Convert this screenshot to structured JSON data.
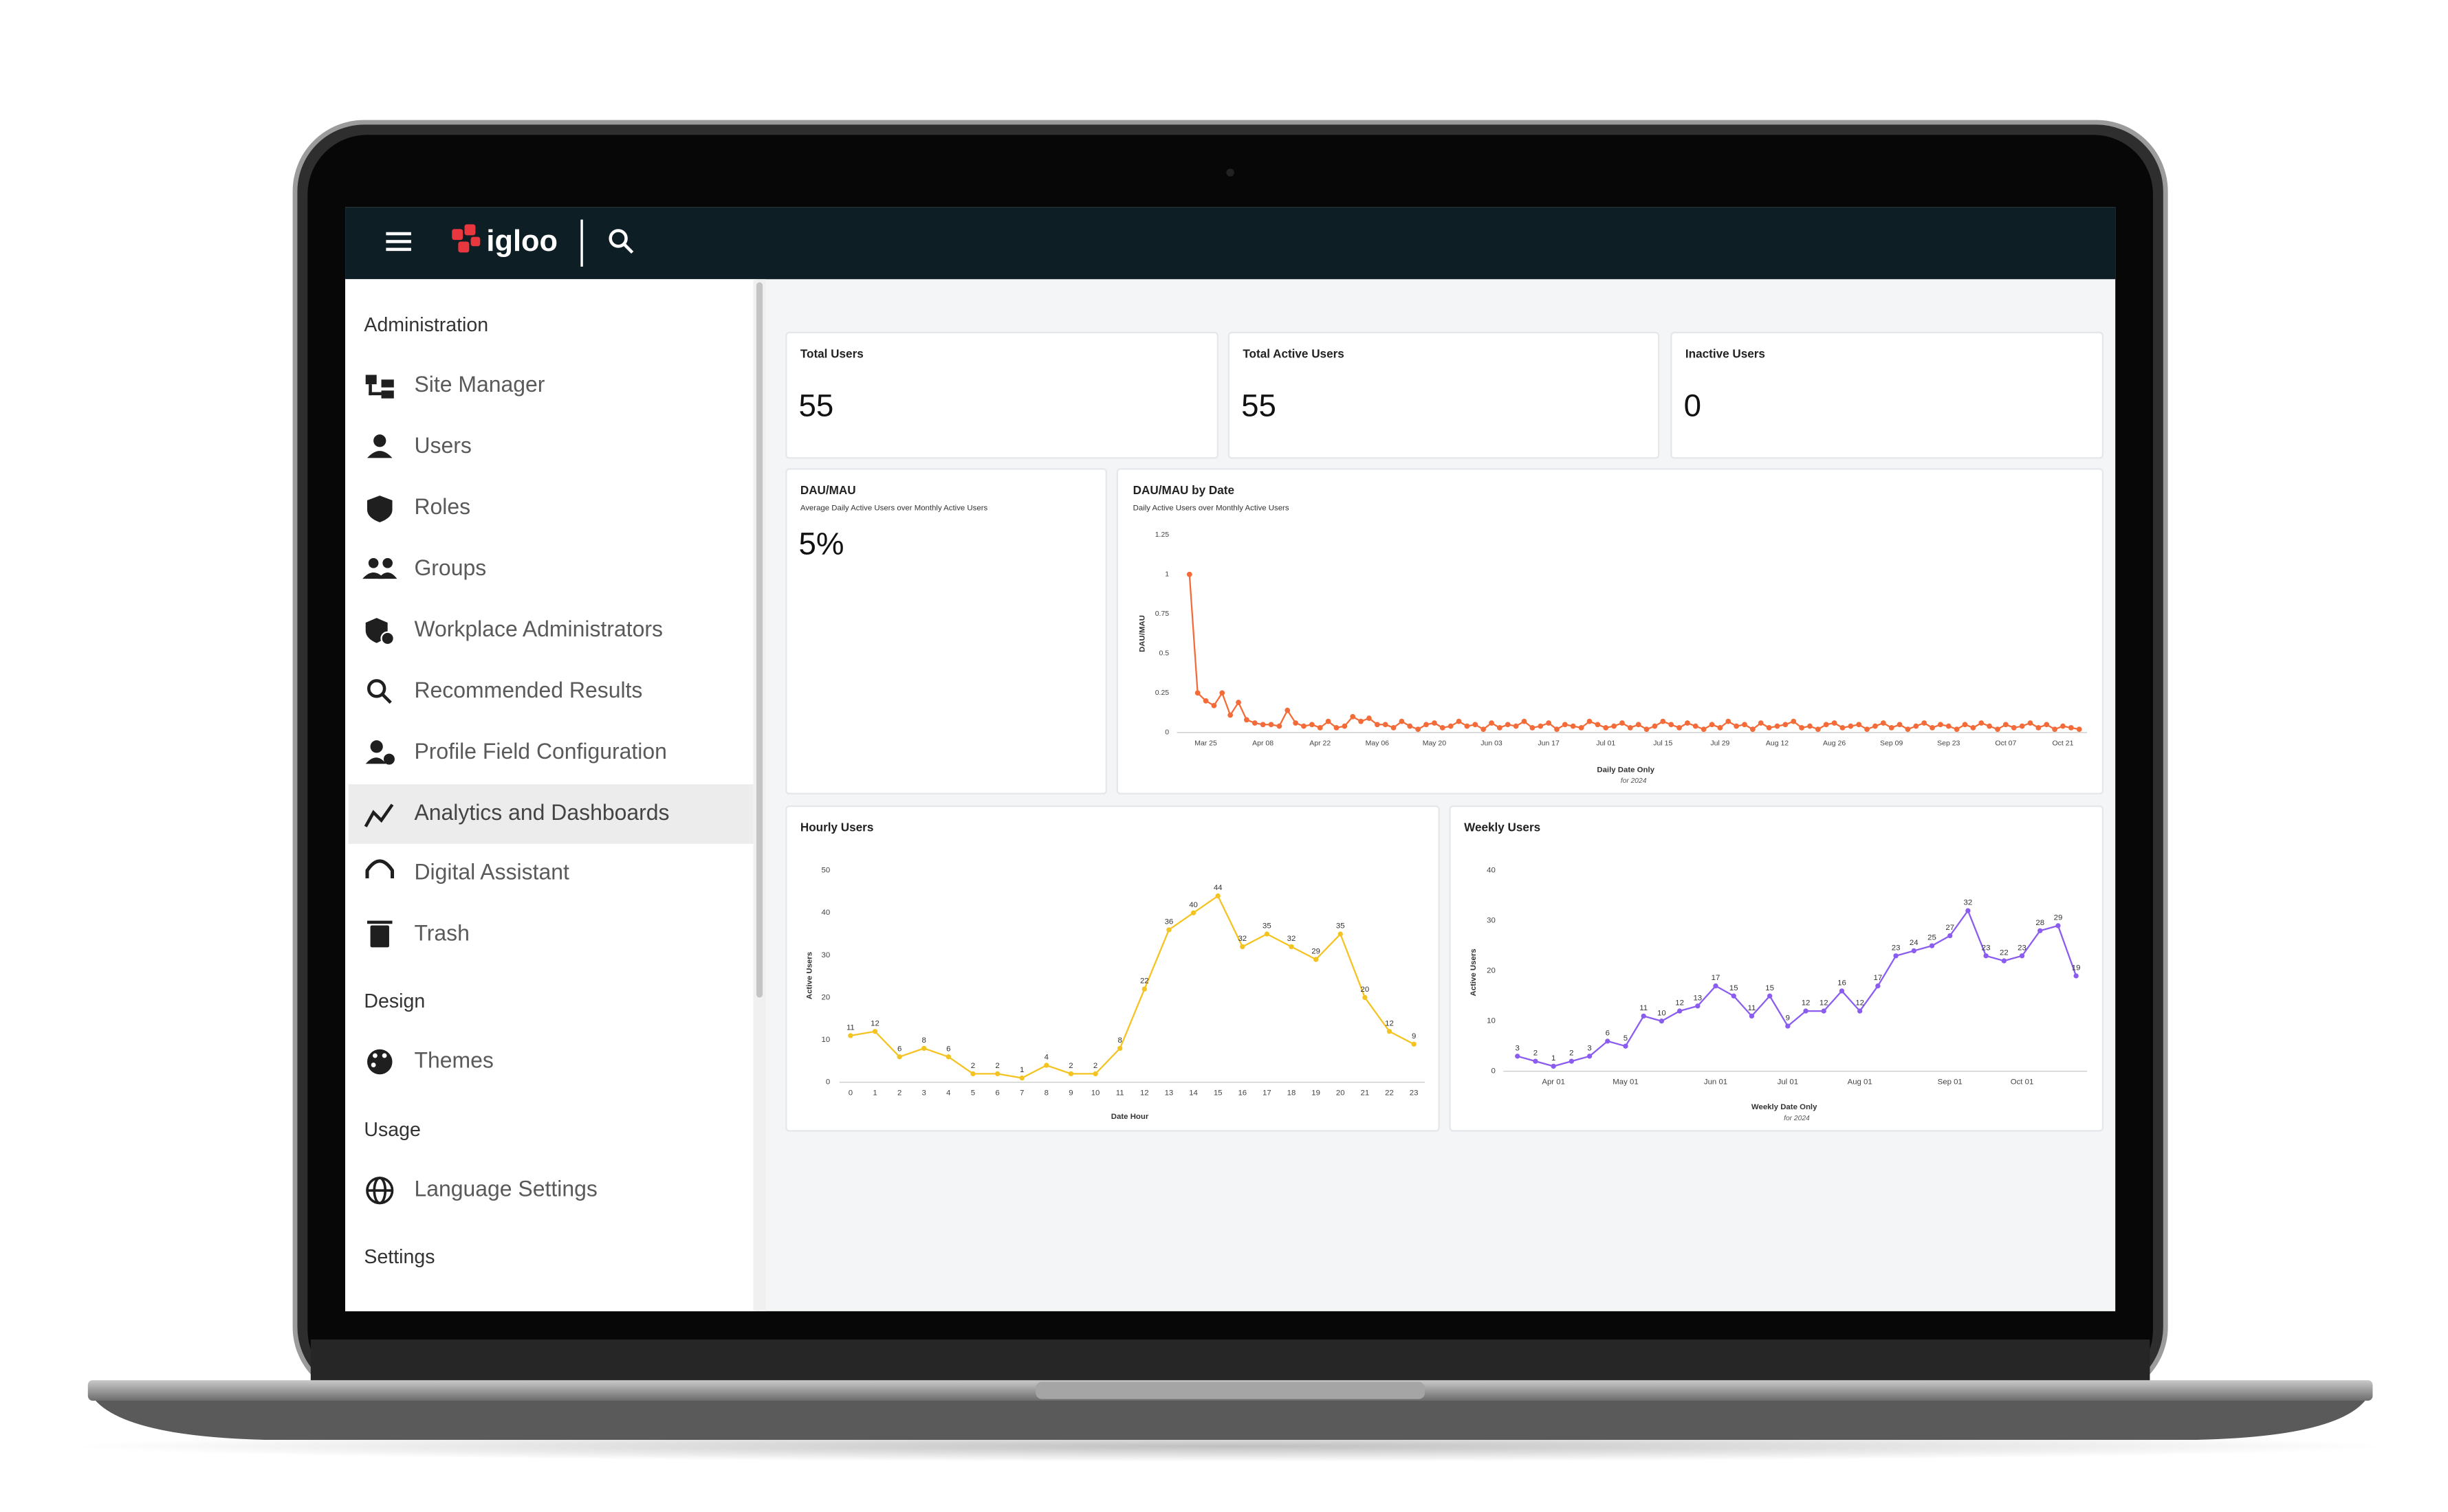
{
  "header": {
    "logo": "igloo"
  },
  "sidebar": {
    "sections": [
      {
        "title": "Administration",
        "items": [
          {
            "label": "Site Manager"
          },
          {
            "label": "Users"
          },
          {
            "label": "Roles"
          },
          {
            "label": "Groups"
          },
          {
            "label": "Workplace Administrators"
          },
          {
            "label": "Recommended Results"
          },
          {
            "label": "Profile Field Configuration"
          },
          {
            "label": "Analytics and Dashboards",
            "active": true
          },
          {
            "label": "Digital Assistant"
          },
          {
            "label": "Trash"
          }
        ]
      },
      {
        "title": "Design",
        "items": [
          {
            "label": "Themes"
          }
        ]
      },
      {
        "title": "Usage",
        "items": [
          {
            "label": "Language Settings"
          }
        ]
      },
      {
        "title": "Settings"
      }
    ]
  },
  "kpis": [
    {
      "title": "Total Users",
      "value": 55
    },
    {
      "title": "Total Active Users",
      "value": 55
    },
    {
      "title": "Inactive Users",
      "value": 0
    }
  ],
  "dau_mau": {
    "title": "DAU/MAU",
    "subtitle": "Average Daily Active Users over Monthly Active Users",
    "value": "5%"
  },
  "chart_data": [
    {
      "type": "line",
      "title": "DAU/MAU by Date",
      "subtitle": "Daily Active Users over Monthly Active Users",
      "y_label": "DAU/MAU",
      "x_label": "Daily Date Only",
      "x_sublabel": "for 2024",
      "color": "#f26b38",
      "ylim": [
        0,
        1.25
      ],
      "yticks": [
        0,
        0.25,
        0.5,
        0.75,
        1,
        1.25
      ],
      "categories": [
        null,
        null,
        "Mar 25",
        null,
        null,
        null,
        null,
        null,
        null,
        "Apr 08",
        null,
        null,
        null,
        null,
        null,
        null,
        "Apr 22",
        null,
        null,
        null,
        null,
        null,
        null,
        "May 06",
        null,
        null,
        null,
        null,
        null,
        null,
        "May 20",
        null,
        null,
        null,
        null,
        null,
        null,
        "Jun 03",
        null,
        null,
        null,
        null,
        null,
        null,
        "Jun 17",
        null,
        null,
        null,
        null,
        null,
        null,
        "Jul 01",
        null,
        null,
        null,
        null,
        null,
        null,
        "Jul 15",
        null,
        null,
        null,
        null,
        null,
        null,
        "Jul 29",
        null,
        null,
        null,
        null,
        null,
        null,
        "Aug 12",
        null,
        null,
        null,
        null,
        null,
        null,
        "Aug 26",
        null,
        null,
        null,
        null,
        null,
        null,
        "Sep 09",
        null,
        null,
        null,
        null,
        null,
        null,
        "Sep 23",
        null,
        null,
        null,
        null,
        null,
        null,
        "Oct 07",
        null,
        null,
        null,
        null,
        null,
        null,
        "Oct 21",
        null,
        null
      ],
      "values": [
        1,
        0.25,
        0.2,
        0.17,
        0.25,
        0.11,
        0.19,
        0.08,
        0.06,
        0.05,
        0.05,
        0.04,
        0.14,
        0.06,
        0.04,
        0.05,
        0.03,
        0.07,
        0.03,
        0.04,
        0.1,
        0.07,
        0.09,
        0.05,
        0.05,
        0.03,
        0.07,
        0.04,
        0.02,
        0.05,
        0.06,
        0.03,
        0.04,
        0.07,
        0.04,
        0.05,
        0.02,
        0.06,
        0.03,
        0.05,
        0.04,
        0.07,
        0.03,
        0.04,
        0.06,
        0.02,
        0.05,
        0.04,
        0.03,
        0.07,
        0.05,
        0.03,
        0.04,
        0.06,
        0.03,
        0.05,
        0.02,
        0.04,
        0.07,
        0.05,
        0.03,
        0.06,
        0.04,
        0.02,
        0.05,
        0.03,
        0.07,
        0.04,
        0.05,
        0.02,
        0.06,
        0.03,
        0.04,
        0.05,
        0.07,
        0.03,
        0.04,
        0.02,
        0.05,
        0.06,
        0.03,
        0.04,
        0.05,
        0.02,
        0.04,
        0.06,
        0.03,
        0.05,
        0.02,
        0.04,
        0.06,
        0.03,
        0.05,
        0.04,
        0.02,
        0.05,
        0.03,
        0.06,
        0.04,
        0.02,
        0.05,
        0.03,
        0.04,
        0.06,
        0.03,
        0.05,
        0.02,
        0.04,
        0.03,
        0.02
      ]
    },
    {
      "type": "line",
      "title": "Hourly Users",
      "y_label": "Active Users",
      "x_label": "Date Hour",
      "color": "#f5c320",
      "data_labels": true,
      "x": [
        0,
        1,
        2,
        3,
        4,
        5,
        6,
        7,
        8,
        9,
        10,
        11,
        12,
        13,
        14,
        15,
        16,
        17,
        18,
        19,
        20,
        21,
        22,
        23
      ],
      "xlim": [
        0,
        23
      ],
      "xticks": [
        0,
        1,
        2,
        3,
        4,
        5,
        6,
        7,
        8,
        9,
        10,
        11,
        12,
        13,
        14,
        15,
        16,
        17,
        18,
        19,
        20,
        21,
        22,
        23
      ],
      "ylim": [
        0,
        50
      ],
      "yticks": [
        0,
        10,
        20,
        30,
        40,
        50
      ],
      "values": [
        11,
        12,
        6,
        8,
        6,
        2,
        2,
        1,
        4,
        2,
        2,
        8,
        22,
        36,
        40,
        44,
        32,
        35,
        32,
        29,
        35,
        20,
        12,
        9
      ]
    },
    {
      "type": "line",
      "title": "Weekly Users",
      "y_label": "Active Users",
      "x_label": "Weekly Date Only",
      "x_sublabel": "for 2024",
      "color": "#8b5cf0",
      "data_labels": true,
      "categories": [
        null,
        null,
        "Apr 01",
        null,
        null,
        null,
        "May 01",
        null,
        null,
        null,
        null,
        "Jun 01",
        null,
        null,
        null,
        "Jul 01",
        null,
        null,
        null,
        "Aug 01",
        null,
        null,
        null,
        null,
        "Sep 01",
        null,
        null,
        null,
        "Oct 01",
        null,
        null,
        null
      ],
      "ylim": [
        0,
        40
      ],
      "yticks": [
        0,
        10,
        20,
        30,
        40
      ],
      "values": [
        3,
        2,
        1,
        2,
        3,
        6,
        5,
        11,
        10,
        12,
        13,
        17,
        15,
        11,
        15,
        9,
        12,
        12,
        16,
        12,
        17,
        23,
        24,
        25,
        27,
        32,
        23,
        22,
        23,
        28,
        29,
        19
      ]
    }
  ]
}
